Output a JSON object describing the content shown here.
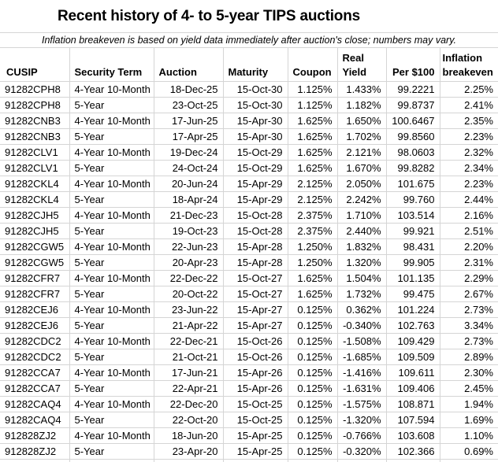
{
  "title": "Recent history of 4- to 5-year TIPS auctions",
  "subtitle": "Inflation breakeven is based on yield data immediately after auction's close; numbers may vary.",
  "colors": {
    "gridline": "#d5d5d5",
    "text": "#000000",
    "background": "#ffffff"
  },
  "chart_data": {
    "type": "table",
    "title": "Recent history of 4- to 5-year TIPS auctions",
    "note": "Inflation breakeven is based on yield data immediately after auction's close; numbers may vary.",
    "columns": [
      {
        "key": "cusip",
        "label": "CUSIP"
      },
      {
        "key": "security-term",
        "label": "Security Term"
      },
      {
        "key": "auction",
        "label": "Auction"
      },
      {
        "key": "maturity",
        "label": "Maturity"
      },
      {
        "key": "coupon",
        "label": "Coupon"
      },
      {
        "key": "real-yield",
        "label": "Real\nYield"
      },
      {
        "key": "per-100",
        "label": "Per $100"
      },
      {
        "key": "inflation-breakeven",
        "label": "Inflation\nbreakeven"
      }
    ],
    "rows": [
      [
        "91282CPH8",
        "4-Year 10-Month",
        "18-Dec-25",
        "15-Oct-30",
        "1.125%",
        "1.433%",
        "99.2221",
        "2.25%"
      ],
      [
        "91282CPH8",
        "5-Year",
        "23-Oct-25",
        "15-Oct-30",
        "1.125%",
        "1.182%",
        "99.8737",
        "2.41%"
      ],
      [
        "91282CNB3",
        "4-Year 10-Month",
        "17-Jun-25",
        "15-Apr-30",
        "1.625%",
        "1.650%",
        "100.6467",
        "2.35%"
      ],
      [
        "91282CNB3",
        "5-Year",
        "17-Apr-25",
        "15-Apr-30",
        "1.625%",
        "1.702%",
        "99.8560",
        "2.23%"
      ],
      [
        "91282CLV1",
        "4-Year 10-Month",
        "19-Dec-24",
        "15-Oct-29",
        "1.625%",
        "2.121%",
        "98.0603",
        "2.32%"
      ],
      [
        "91282CLV1",
        "5-Year",
        "24-Oct-24",
        "15-Oct-29",
        "1.625%",
        "1.670%",
        "99.8282",
        "2.34%"
      ],
      [
        "91282CKL4",
        "4-Year 10-Month",
        "20-Jun-24",
        "15-Apr-29",
        "2.125%",
        "2.050%",
        "101.675",
        "2.23%"
      ],
      [
        "91282CKL4",
        "5-Year",
        "18-Apr-24",
        "15-Apr-29",
        "2.125%",
        "2.242%",
        "99.760",
        "2.44%"
      ],
      [
        "91282CJH5",
        "4-Year 10-Month",
        "21-Dec-23",
        "15-Oct-28",
        "2.375%",
        "1.710%",
        "103.514",
        "2.16%"
      ],
      [
        "91282CJH5",
        "5-Year",
        "19-Oct-23",
        "15-Oct-28",
        "2.375%",
        "2.440%",
        "99.921",
        "2.51%"
      ],
      [
        "91282CGW5",
        "4-Year 10-Month",
        "22-Jun-23",
        "15-Apr-28",
        "1.250%",
        "1.832%",
        "98.431",
        "2.20%"
      ],
      [
        "91282CGW5",
        "5-Year",
        "20-Apr-23",
        "15-Apr-28",
        "1.250%",
        "1.320%",
        "99.905",
        "2.31%"
      ],
      [
        "91282CFR7",
        "4-Year 10-Month",
        "22-Dec-22",
        "15-Oct-27",
        "1.625%",
        "1.504%",
        "101.135",
        "2.29%"
      ],
      [
        "91282CFR7",
        "5-Year",
        "20-Oct-22",
        "15-Oct-27",
        "1.625%",
        "1.732%",
        "99.475",
        "2.67%"
      ],
      [
        "91282CEJ6",
        "4-Year 10-Month",
        "23-Jun-22",
        "15-Apr-27",
        "0.125%",
        "0.362%",
        "101.224",
        "2.73%"
      ],
      [
        "91282CEJ6",
        "5-Year",
        "21-Apr-22",
        "15-Apr-27",
        "0.125%",
        "-0.340%",
        "102.763",
        "3.34%"
      ],
      [
        "91282CDC2",
        "4-Year 10-Month",
        "22-Dec-21",
        "15-Oct-26",
        "0.125%",
        "-1.508%",
        "109.429",
        "2.73%"
      ],
      [
        "91282CDC2",
        "5-Year",
        "21-Oct-21",
        "15-Oct-26",
        "0.125%",
        "-1.685%",
        "109.509",
        "2.89%"
      ],
      [
        "91282CCA7",
        "4-Year 10-Month",
        "17-Jun-21",
        "15-Apr-26",
        "0.125%",
        "-1.416%",
        "109.611",
        "2.30%"
      ],
      [
        "91282CCA7",
        "5-Year",
        "22-Apr-21",
        "15-Apr-26",
        "0.125%",
        "-1.631%",
        "109.406",
        "2.45%"
      ],
      [
        "91282CAQ4",
        "4-Year 10-Month",
        "22-Dec-20",
        "15-Oct-25",
        "0.125%",
        "-1.575%",
        "108.871",
        "1.94%"
      ],
      [
        "91282CAQ4",
        "5-Year",
        "22-Oct-20",
        "15-Oct-25",
        "0.125%",
        "-1.320%",
        "107.594",
        "1.69%"
      ],
      [
        "912828ZJ2",
        "4-Year 10-Month",
        "18-Jun-20",
        "15-Apr-25",
        "0.125%",
        "-0.766%",
        "103.608",
        "1.10%"
      ],
      [
        "912828ZJ2",
        "5-Year",
        "23-Apr-20",
        "15-Apr-25",
        "0.125%",
        "-0.320%",
        "102.366",
        "0.69%"
      ]
    ],
    "column_alignments": [
      "left",
      "left",
      "right",
      "right",
      "right",
      "right",
      "right",
      "right"
    ],
    "header_alignments": [
      "left",
      "left",
      "left",
      "left",
      "left",
      "left",
      "right",
      "left"
    ]
  }
}
